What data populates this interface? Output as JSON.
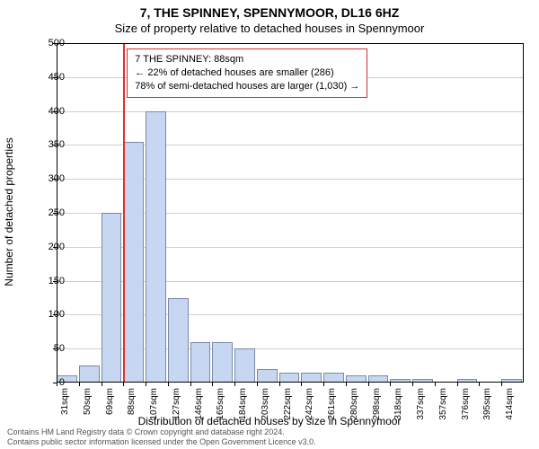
{
  "title": "7, THE SPINNEY, SPENNYMOOR, DL16 6HZ",
  "subtitle": "Size of property relative to detached houses in Spennymoor",
  "chart": {
    "type": "histogram",
    "ylabel": "Number of detached properties",
    "xlabel": "Distribution of detached houses by size in Spennymoor",
    "ylim": [
      0,
      500
    ],
    "ytick_step": 50,
    "background_color": "#ffffff",
    "grid_color": "#d0d0d0",
    "bar_fill": "#c7d7f2",
    "bar_stroke": "#7a8aa6",
    "marker_color": "#e03030",
    "info_border": "#d03030",
    "xticks": [
      "31sqm",
      "50sqm",
      "69sqm",
      "88sqm",
      "107sqm",
      "127sqm",
      "146sqm",
      "165sqm",
      "184sqm",
      "203sqm",
      "222sqm",
      "242sqm",
      "261sqm",
      "280sqm",
      "298sqm",
      "318sqm",
      "337sqm",
      "357sqm",
      "376sqm",
      "395sqm",
      "414sqm"
    ],
    "values": [
      10,
      25,
      250,
      355,
      400,
      125,
      60,
      60,
      50,
      20,
      15,
      15,
      15,
      10,
      10,
      5,
      5,
      0,
      5,
      0,
      5
    ]
  },
  "marker_bin_index": 3,
  "infobox": {
    "line1": "7 THE SPINNEY: 88sqm",
    "line2": "← 22% of detached houses are smaller (286)",
    "line3": "78% of semi-detached houses are larger (1,030) →"
  },
  "footer": {
    "line1": "Contains HM Land Registry data © Crown copyright and database right 2024.",
    "line2": "Contains public sector information licensed under the Open Government Licence v3.0."
  },
  "fonts": {
    "title": 14,
    "subtitle": 13,
    "axis": 12,
    "tick": 11,
    "xtick": 10,
    "info": 11,
    "footer": 9
  }
}
